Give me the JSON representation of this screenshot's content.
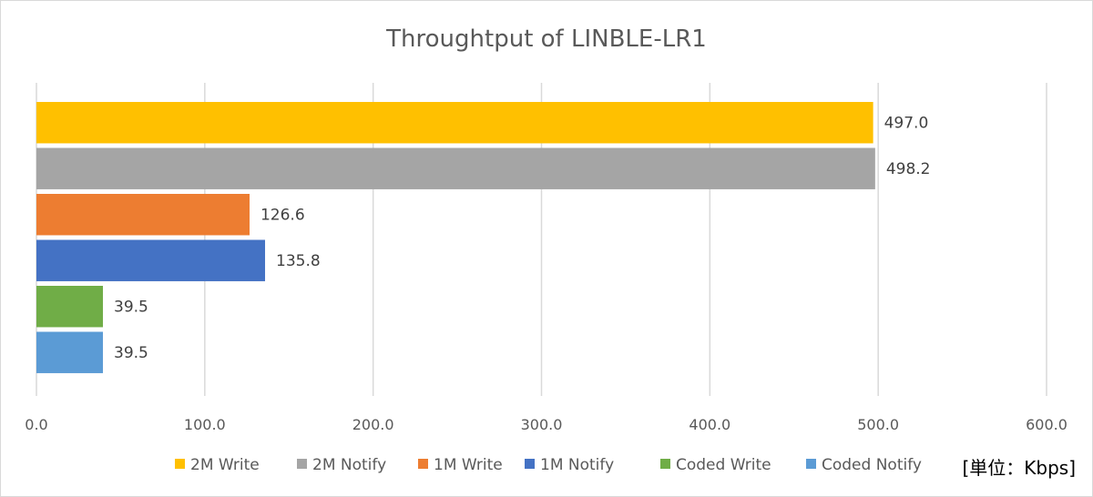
{
  "chart_data": {
    "type": "bar",
    "orientation": "horizontal",
    "title": "Throughtput of LINBLE-LR1",
    "unit_label": "[単位：Kbps]",
    "xlim": [
      0,
      600
    ],
    "x_ticks": [
      "0.0",
      "100.0",
      "200.0",
      "300.0",
      "400.0",
      "500.0",
      "600.0"
    ],
    "grid": "vertical",
    "legend_position": "bottom",
    "series": [
      {
        "name": "2M Write",
        "value": 497.0,
        "label": "497.0",
        "color": "#FFC000"
      },
      {
        "name": "2M Notify",
        "value": 498.2,
        "label": "498.2",
        "color": "#A5A5A5"
      },
      {
        "name": "1M Write",
        "value": 126.6,
        "label": "126.6",
        "color": "#ED7D31"
      },
      {
        "name": "1M Notify",
        "value": 135.8,
        "label": "135.8",
        "color": "#4472C4"
      },
      {
        "name": "Coded Write",
        "value": 39.5,
        "label": "39.5",
        "color": "#70AD47"
      },
      {
        "name": "Coded Notify",
        "value": 39.5,
        "label": "39.5",
        "color": "#5B9BD5"
      }
    ]
  }
}
